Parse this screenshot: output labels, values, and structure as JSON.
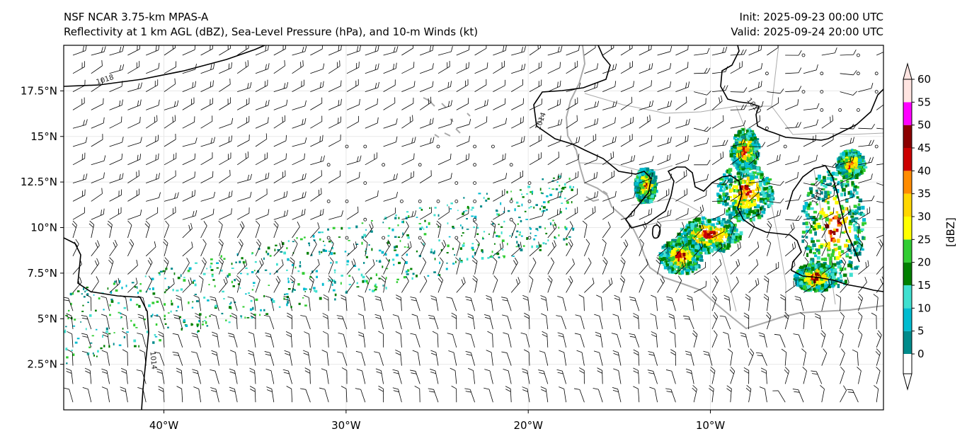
{
  "header": {
    "model": "NSF NCAR 3.75-km MPAS-A",
    "fields": "Reflectivity at 1 km AGL (dBZ), Sea-Level Pressure (hPa), and 10-m Winds (kt)",
    "init": "Init: 2025-09-23 00:00 UTC",
    "valid": "Valid: 2025-09-24 20:00 UTC"
  },
  "map": {
    "lon_range": [
      -45.5,
      -0.5
    ],
    "lat_range": [
      0,
      20
    ],
    "lon_ticks": [
      {
        "value": -40,
        "label": "40°W"
      },
      {
        "value": -30,
        "label": "30°W"
      },
      {
        "value": -20,
        "label": "20°W"
      },
      {
        "value": -10,
        "label": "10°W"
      }
    ],
    "lat_ticks": [
      {
        "value": 17.5,
        "label": "17.5°N"
      },
      {
        "value": 15,
        "label": "15°N"
      },
      {
        "value": 12.5,
        "label": "12.5°N"
      },
      {
        "value": 10,
        "label": "10°N"
      },
      {
        "value": 7.5,
        "label": "7.5°N"
      },
      {
        "value": 5,
        "label": "5°N"
      },
      {
        "value": 2.5,
        "label": "2.5°N"
      }
    ],
    "isobar_labels": [
      {
        "text": "1018",
        "lon": -43.2,
        "lat": 18.0
      },
      {
        "text": "1014",
        "lon": -19.2,
        "lat": 15.8
      },
      {
        "text": "1010",
        "lon": -7.7,
        "lat": 16.6
      },
      {
        "text": "1014",
        "lon": -4.0,
        "lat": 11.7
      },
      {
        "text": "1014",
        "lon": -40.7,
        "lat": 2.7
      }
    ]
  },
  "colorbar": {
    "label": "[dBZ]",
    "ticks": [
      "0",
      "5",
      "10",
      "15",
      "20",
      "25",
      "30",
      "35",
      "40",
      "45",
      "50",
      "55",
      "60"
    ],
    "colors": [
      "#ffffff",
      "#008b8b",
      "#00bcd0",
      "#40e0d0",
      "#008000",
      "#32cd32",
      "#ffff00",
      "#ffd700",
      "#ff8c00",
      "#cc0000",
      "#8b0000",
      "#ff00ff",
      "#ffe4e1"
    ]
  }
}
